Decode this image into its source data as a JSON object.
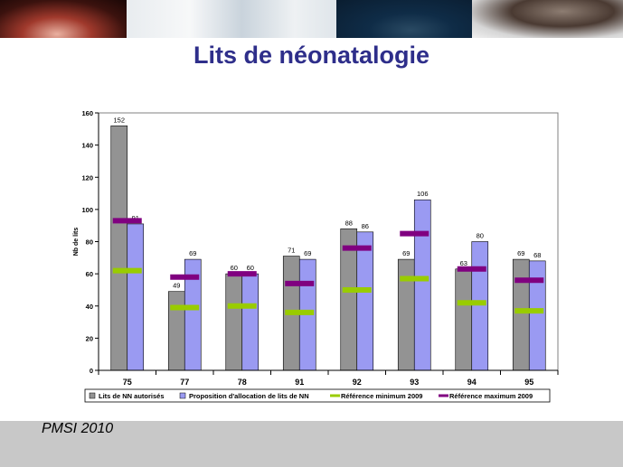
{
  "title": "Lits de néonatalogie",
  "footer": "PMSI 2010",
  "chart_data": {
    "type": "bar",
    "title": "",
    "xlabel": "",
    "ylabel": "Nb de lits",
    "ylim": [
      0,
      160
    ],
    "yticks": [
      0,
      20,
      40,
      60,
      80,
      100,
      120,
      140,
      160
    ],
    "categories": [
      "75",
      "77",
      "78",
      "91",
      "92",
      "93",
      "94",
      "95"
    ],
    "series": [
      {
        "name": "Lits de NN autorisés",
        "kind": "bar",
        "color": "#939393",
        "values": [
          152,
          49,
          60,
          71,
          88,
          69,
          63,
          69
        ]
      },
      {
        "name": "Proposition d'allocation de lits de NN",
        "kind": "bar",
        "color": "#9a9af2",
        "values": [
          91,
          69,
          60,
          69,
          86,
          106,
          80,
          68
        ]
      },
      {
        "name": "Référence minimum 2009",
        "kind": "marker",
        "color": "#99cc00",
        "values": [
          62,
          39,
          40,
          36,
          50,
          57,
          42,
          37
        ]
      },
      {
        "name": "Référence maximum 2009",
        "kind": "marker",
        "color": "#800080",
        "values": [
          93,
          58,
          60,
          54,
          76,
          85,
          63,
          56
        ]
      }
    ],
    "grid": false,
    "legend": "bottom"
  }
}
